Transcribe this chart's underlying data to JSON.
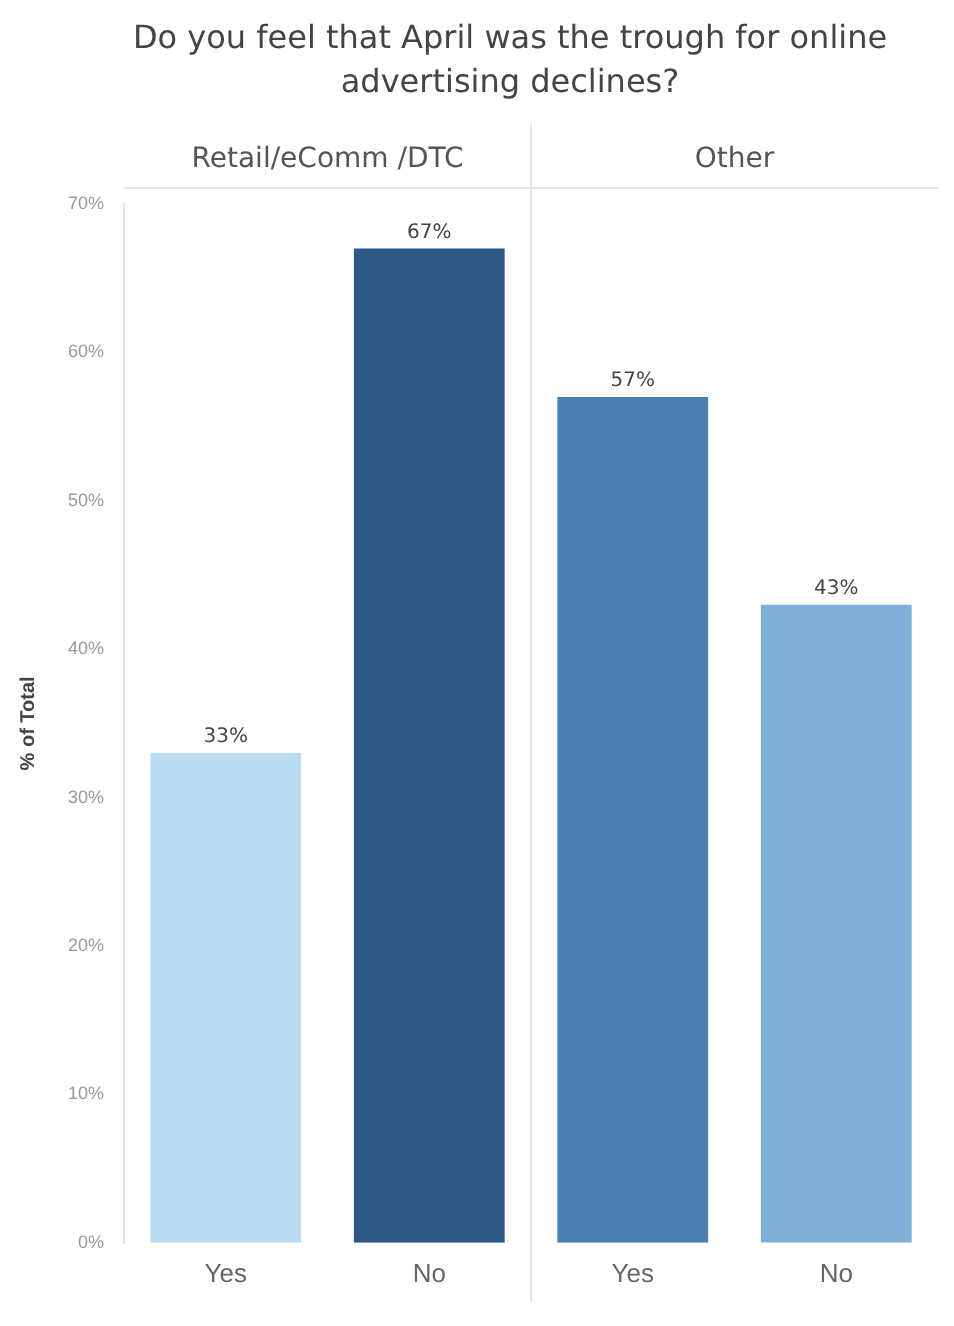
{
  "chart_data": {
    "type": "bar",
    "title": "Do you feel that April was the trough for online advertising declines?",
    "ylabel": "% of Total",
    "annotations": [
      "Retail/eComm /DTC",
      "Other"
    ],
    "categories": [
      "Yes",
      "No",
      "Yes",
      "No"
    ],
    "values": [
      33,
      67,
      57,
      43
    ],
    "value_labels": [
      "33%",
      "67%",
      "57%",
      "43%"
    ],
    "colors": [
      "#b9dcf0",
      "#2c5886",
      "#4c7eb0",
      "#7fb0d5"
    ],
    "ylim": [
      0,
      70
    ],
    "yticks": [
      {
        "value": 0,
        "label": "0%"
      },
      {
        "value": 10,
        "label": "10%"
      },
      {
        "value": 20,
        "label": "20%"
      },
      {
        "value": 30,
        "label": "30%"
      },
      {
        "value": 40,
        "label": "40%"
      },
      {
        "value": 50,
        "label": "50%"
      },
      {
        "value": 60,
        "label": "60%"
      },
      {
        "value": 70,
        "label": "70%"
      }
    ],
    "grid": false,
    "legend": false
  }
}
